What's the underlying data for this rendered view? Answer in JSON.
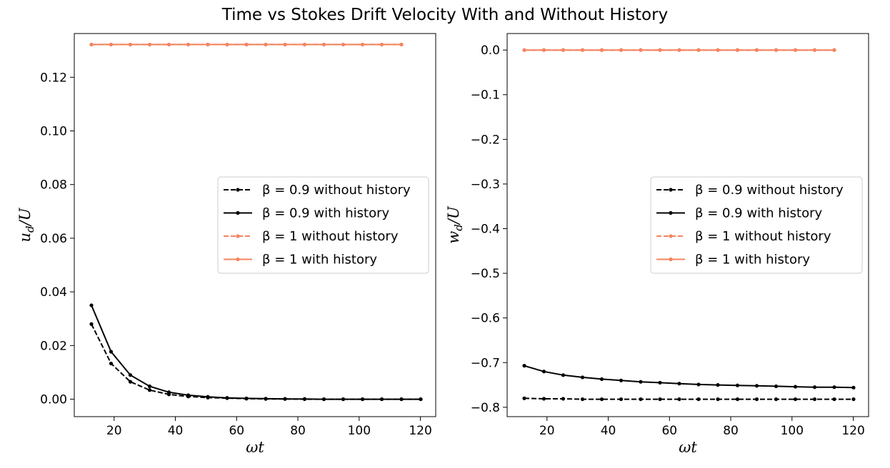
{
  "figure": {
    "title": "Time vs Stokes Drift Velocity With and Without History"
  },
  "colors": {
    "black": "#000000",
    "coral": "#f4845f"
  },
  "chart_data": [
    {
      "type": "line",
      "xlabel": "ωt",
      "ylabel": "u_d/U",
      "xlim": [
        7,
        125
      ],
      "ylim": [
        -0.0065,
        0.1363
      ],
      "xticks": [
        20,
        40,
        60,
        80,
        100,
        120
      ],
      "yticks": [
        0.0,
        0.02,
        0.04,
        0.06,
        0.08,
        0.1,
        0.12
      ],
      "ytick_labels": [
        "0.00",
        "0.02",
        "0.04",
        "0.06",
        "0.08",
        "0.10",
        "0.12"
      ],
      "legend_position": "center-right",
      "series": [
        {
          "name": "β = 0.9 without history",
          "color": "#000000",
          "style": "dashed",
          "marker": "dot",
          "x": [
            12.6,
            19.0,
            25.3,
            31.6,
            37.9,
            44.2,
            50.6,
            56.9,
            63.2,
            69.5,
            75.8,
            82.2,
            88.5,
            94.8,
            101.1,
            107.4,
            113.8,
            120.1
          ],
          "y": [
            0.028,
            0.0133,
            0.0065,
            0.0034,
            0.0018,
            0.001,
            0.0006,
            0.0004,
            0.0002,
            0.0001,
            0.0001,
            0.0,
            0.0,
            0.0,
            0.0,
            0.0,
            0.0,
            0.0
          ]
        },
        {
          "name": "β = 0.9 with history",
          "color": "#000000",
          "style": "solid",
          "marker": "dot",
          "x": [
            12.6,
            19.0,
            25.3,
            31.6,
            37.9,
            44.2,
            50.6,
            56.9,
            63.2,
            69.5,
            75.8,
            82.2,
            88.5,
            94.8,
            101.1,
            107.4,
            113.8,
            120.1
          ],
          "y": [
            0.035,
            0.0177,
            0.009,
            0.0048,
            0.0026,
            0.0015,
            0.0009,
            0.0005,
            0.0003,
            0.0002,
            0.0001,
            0.0001,
            0.0,
            0.0,
            0.0,
            0.0,
            0.0,
            0.0
          ]
        },
        {
          "name": "β = 1 without history",
          "color": "#f4845f",
          "style": "dashed",
          "marker": "dot",
          "x": [
            12.6,
            19.0,
            25.3,
            31.6,
            37.9,
            44.2,
            50.6,
            56.9,
            63.2,
            69.5,
            75.8,
            82.2,
            88.5,
            94.8,
            101.1,
            107.4,
            113.8
          ],
          "y": [
            0.1322,
            0.1322,
            0.1322,
            0.1322,
            0.1322,
            0.1322,
            0.1322,
            0.1322,
            0.1322,
            0.1322,
            0.1322,
            0.1322,
            0.1322,
            0.1322,
            0.1322,
            0.1322,
            0.1322
          ]
        },
        {
          "name": "β = 1 with history",
          "color": "#f4845f",
          "style": "solid",
          "marker": "dot",
          "x": [
            12.6,
            19.0,
            25.3,
            31.6,
            37.9,
            44.2,
            50.6,
            56.9,
            63.2,
            69.5,
            75.8,
            82.2,
            88.5,
            94.8,
            101.1,
            107.4,
            113.8
          ],
          "y": [
            0.1322,
            0.1322,
            0.1322,
            0.1322,
            0.1322,
            0.1322,
            0.1322,
            0.1322,
            0.1322,
            0.1322,
            0.1322,
            0.1322,
            0.1322,
            0.1322,
            0.1322,
            0.1322,
            0.1322
          ]
        }
      ]
    },
    {
      "type": "line",
      "xlabel": "ωt",
      "ylabel": "w_d/U",
      "xlim": [
        7,
        125
      ],
      "ylim": [
        -0.821,
        0.037
      ],
      "xticks": [
        20,
        40,
        60,
        80,
        100,
        120
      ],
      "yticks": [
        0.0,
        -0.1,
        -0.2,
        -0.3,
        -0.4,
        -0.5,
        -0.6,
        -0.7,
        -0.8
      ],
      "ytick_labels": [
        "0.0",
        "−0.1",
        "−0.2",
        "−0.3",
        "−0.4",
        "−0.5",
        "−0.6",
        "−0.7",
        "−0.8"
      ],
      "legend_position": "center-right",
      "series": [
        {
          "name": "β = 0.9 without history",
          "color": "#000000",
          "style": "dashed",
          "marker": "dot",
          "x": [
            12.6,
            19.0,
            25.3,
            31.6,
            37.9,
            44.2,
            50.6,
            56.9,
            63.2,
            69.5,
            75.8,
            82.2,
            88.5,
            94.8,
            101.1,
            107.4,
            113.8,
            120.1
          ],
          "y": [
            -0.78,
            -0.781,
            -0.781,
            -0.782,
            -0.782,
            -0.782,
            -0.782,
            -0.782,
            -0.782,
            -0.782,
            -0.782,
            -0.782,
            -0.782,
            -0.782,
            -0.782,
            -0.782,
            -0.782,
            -0.782
          ]
        },
        {
          "name": "β = 0.9 with history",
          "color": "#000000",
          "style": "solid",
          "marker": "dot",
          "x": [
            12.6,
            19.0,
            25.3,
            31.6,
            37.9,
            44.2,
            50.6,
            56.9,
            63.2,
            69.5,
            75.8,
            82.2,
            88.5,
            94.8,
            101.1,
            107.4,
            113.8,
            120.1
          ],
          "y": [
            -0.707,
            -0.72,
            -0.728,
            -0.733,
            -0.737,
            -0.74,
            -0.743,
            -0.745,
            -0.747,
            -0.749,
            -0.75,
            -0.751,
            -0.752,
            -0.753,
            -0.754,
            -0.755,
            -0.755,
            -0.756
          ]
        },
        {
          "name": "β = 1 without history",
          "color": "#f4845f",
          "style": "dashed",
          "marker": "dot",
          "x": [
            12.6,
            19.0,
            25.3,
            31.6,
            37.9,
            44.2,
            50.6,
            56.9,
            63.2,
            69.5,
            75.8,
            82.2,
            88.5,
            94.8,
            101.1,
            107.4,
            113.8
          ],
          "y": [
            0.0,
            0.0,
            0.0,
            0.0,
            0.0,
            0.0,
            0.0,
            0.0,
            0.0,
            0.0,
            0.0,
            0.0,
            0.0,
            0.0,
            0.0,
            0.0,
            0.0
          ]
        },
        {
          "name": "β = 1 with history",
          "color": "#f4845f",
          "style": "solid",
          "marker": "dot",
          "x": [
            12.6,
            19.0,
            25.3,
            31.6,
            37.9,
            44.2,
            50.6,
            56.9,
            63.2,
            69.5,
            75.8,
            82.2,
            88.5,
            94.8,
            101.1,
            107.4,
            113.8
          ],
          "y": [
            0.0,
            0.0,
            0.0,
            0.0,
            0.0,
            0.0,
            0.0,
            0.0,
            0.0,
            0.0,
            0.0,
            0.0,
            0.0,
            0.0,
            0.0,
            0.0,
            0.0
          ]
        }
      ]
    }
  ]
}
